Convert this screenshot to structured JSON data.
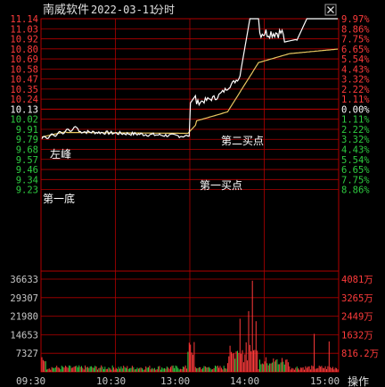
{
  "header": {
    "stock_name": "南威软件",
    "date": "2022-03-11",
    "mode": "分时",
    "close_icon": "close-icon"
  },
  "colors": {
    "up": "#ff3b3b",
    "down": "#2ecc40",
    "flat": "#ffffff",
    "grid": "#b00000",
    "price_line": "#ffffff",
    "avg_line": "#e8c860",
    "axis_text": "#c8c8c8"
  },
  "price_axis": {
    "left": [
      "11.14",
      "11.03",
      "10.92",
      "10.80",
      "10.69",
      "10.58",
      "10.47",
      "10.35",
      "10.24",
      "10.13",
      "10.02",
      "9.91",
      "9.79",
      "9.68",
      "9.57",
      "9.46",
      "9.34",
      "9.23"
    ],
    "right": [
      "9.97%",
      "8.86%",
      "7.75%",
      "6.65%",
      "5.54%",
      "4.43%",
      "3.32%",
      "2.22%",
      "1.11%",
      "0.00%",
      "1.11%",
      "2.22%",
      "3.32%",
      "4.43%",
      "5.54%",
      "6.65%",
      "7.75%",
      "8.86%"
    ],
    "ref_price": "10.13"
  },
  "volume_axis": {
    "left": [
      "36633",
      "29307",
      "21980",
      "14653",
      "7327"
    ],
    "right": [
      "4081万",
      "3265万",
      "2449万",
      "1632万",
      "816.2万"
    ]
  },
  "time_axis": {
    "labels": [
      "09:30",
      "10:30",
      "13:00",
      "14:00",
      "15:00"
    ],
    "action": "操作"
  },
  "annotations": {
    "peak": "左峰",
    "bottom": "第一底",
    "buy1": "第一买点",
    "buy2": "第二买点"
  },
  "chart_data": {
    "type": "line",
    "x": [
      "09:30",
      "10:00",
      "10:30",
      "11:00",
      "11:30/13:00",
      "13:30",
      "14:00",
      "14:30",
      "15:00"
    ],
    "series": [
      {
        "values": [
          9.79,
          9.95,
          9.88,
          9.87,
          9.83,
          10.29,
          11.1,
          10.87,
          11.14
        ]
      },
      {
        "values": [
          9.81,
          9.88,
          9.87,
          9.86,
          9.86,
          10.11,
          10.63,
          10.79,
          10.8
        ]
      }
    ],
    "ylim": [
      9.12,
      11.14
    ],
    "volume_ylim": [
      0,
      36633
    ]
  }
}
